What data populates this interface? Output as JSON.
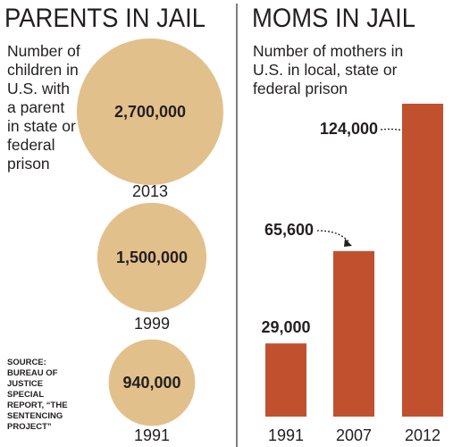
{
  "chart_data": [
    {
      "type": "bubble",
      "title": "PARENTS IN JAIL",
      "subtitle": "Number of children in U.S. with a parent in state or federal prison",
      "categories": [
        "2013",
        "1999",
        "1991"
      ],
      "values": [
        2700000,
        1500000,
        940000
      ],
      "value_labels": [
        "2,700,000",
        "1,500,000",
        "940,000"
      ],
      "color": "#e2c08b"
    },
    {
      "type": "bar",
      "title": "MOMS IN JAIL",
      "subtitle": "Number of mothers in U.S. in local, state or federal prison",
      "categories": [
        "1991",
        "2007",
        "2012"
      ],
      "values": [
        29000,
        65600,
        124000
      ],
      "value_labels": [
        "29,000",
        "65,600",
        "124,000"
      ],
      "color": "#c1502f"
    }
  ],
  "source": "SOURCE: BUREAU OF JUSTICE SPECIAL REPORT, “THE SENTENCING PROJECT”"
}
